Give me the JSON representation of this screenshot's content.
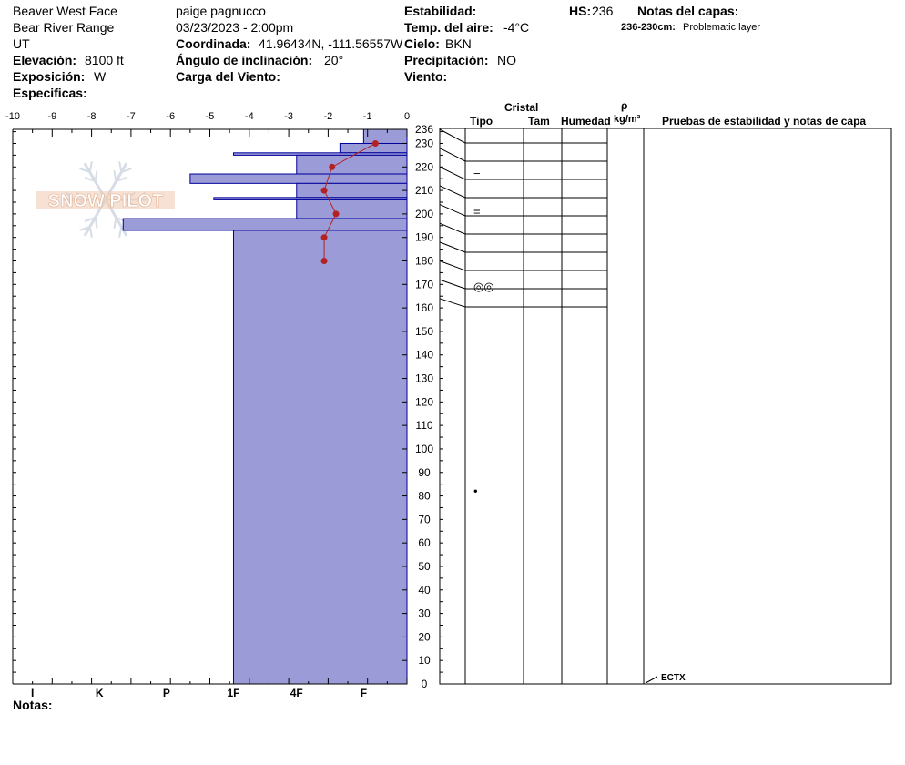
{
  "header": {
    "location": "Beaver West Face",
    "range": "Bear River Range",
    "state": "UT",
    "elevation_label": "Elevación:",
    "elevation_value": "8100 ft",
    "aspect_label": "Exposición:",
    "aspect_value": "W",
    "specifics_label": "Especificas:",
    "observer": "paige pagnucco",
    "datetime": "03/23/2023 - 2:00pm",
    "coord_label": "Coordinada:",
    "coord_value": "41.96434N, -111.56557W",
    "slope_label": "Ángulo de inclinación:",
    "slope_value": "20°",
    "wind_load_label": "Carga del Viento:",
    "stability_label": "Estabilidad:",
    "air_temp_label": "Temp. del aire:",
    "air_temp_value": "-4°C",
    "sky_label": "Cielo:",
    "sky_value": "BKN",
    "precip_label": "Precipitación:",
    "precip_value": "NO",
    "wind_label": "Viento:",
    "hs_label": "HS:",
    "hs_value": "236",
    "layer_notes_label": "Notas del capas:",
    "layer_note_range": "236-230cm:",
    "layer_note_text": "Problematic layer"
  },
  "columns": {
    "crystal": "Cristal",
    "type": "Tipo",
    "size": "Tam",
    "moisture": "Humedad",
    "rho": "ρ",
    "density_unit": "kg/m³",
    "tests": "Pruebas de estabilidad y notas de capa"
  },
  "footer": {
    "notes_label": "Notas:"
  },
  "watermark": {
    "text": "SNOW PILOT",
    "color": "#f0c8b0"
  },
  "colors": {
    "hardness_fill": "#9b9bd8",
    "hardness_stroke": "#00009b",
    "temp_line": "#b22222"
  },
  "chart_data": {
    "type": "snow_profile",
    "temp_axis": {
      "min": -10,
      "max": 0,
      "ticks": [
        "-10",
        "-9",
        "-8",
        "-7",
        "-6",
        "-5",
        "-4",
        "-3",
        "-2",
        "-1",
        "0"
      ]
    },
    "hardness_axis": {
      "labels": [
        "I",
        "K",
        "P",
        "1F",
        "4F",
        "F"
      ],
      "label_values": [
        -9.5,
        -7.8,
        -6.1,
        -4.4,
        -2.8,
        -1.1
      ]
    },
    "depth_axis": {
      "min": 0,
      "max": 236,
      "ticks": [
        "236",
        "230",
        "220",
        "210",
        "200",
        "190",
        "180",
        "170",
        "160",
        "150",
        "140",
        "130",
        "120",
        "110",
        "100",
        "90",
        "80",
        "70",
        "60",
        "50",
        "40",
        "30",
        "20",
        "10",
        "0"
      ],
      "tick_values": [
        236,
        230,
        220,
        210,
        200,
        190,
        180,
        170,
        160,
        150,
        140,
        130,
        120,
        110,
        100,
        90,
        80,
        70,
        60,
        50,
        40,
        30,
        20,
        10,
        0
      ]
    },
    "hardness_layers": [
      {
        "top": 236,
        "bottom": 230,
        "value": -1.1
      },
      {
        "top": 230,
        "bottom": 226,
        "value": -1.7
      },
      {
        "top": 226,
        "bottom": 225,
        "value": -4.4
      },
      {
        "top": 225,
        "bottom": 217,
        "value": -2.8
      },
      {
        "top": 217,
        "bottom": 213,
        "value": -5.5
      },
      {
        "top": 213,
        "bottom": 207,
        "value": -2.8
      },
      {
        "top": 207,
        "bottom": 206,
        "value": -4.9
      },
      {
        "top": 206,
        "bottom": 198,
        "value": -2.8
      },
      {
        "top": 198,
        "bottom": 193,
        "value": -7.2
      },
      {
        "top": 193,
        "bottom": 0,
        "value": -4.4
      }
    ],
    "temperature": {
      "depths": [
        230,
        220,
        210,
        200,
        190,
        180
      ],
      "values": [
        -0.8,
        -1.9,
        -2.1,
        -1.8,
        -2.1,
        -2.1
      ]
    },
    "layer_boundaries": [
      236,
      228,
      220,
      212,
      204,
      196,
      188,
      180,
      172,
      164
    ],
    "grain_marks": [
      {
        "depth": 217,
        "symbol": "−"
      },
      {
        "depth": 201,
        "symbol": "="
      },
      {
        "depth": 169,
        "symbol": "◎◎"
      },
      {
        "depth": 82,
        "symbol": "•"
      }
    ],
    "stability_tests": [
      {
        "depth": 0,
        "label": "ECTX"
      }
    ]
  }
}
